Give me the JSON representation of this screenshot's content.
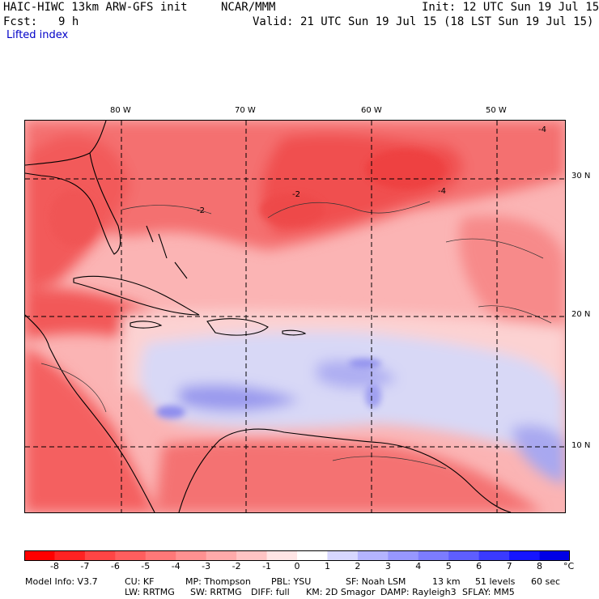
{
  "header": {
    "model": "HAIC-HIWC 13km ARW-GFS init",
    "org": "NCAR/MMM",
    "init": "Init: 12 UTC Sun 19 Jul 15",
    "fcst_label": "Fcst:",
    "fcst_value": "9 h",
    "valid": "Valid: 21 UTC Sun 19 Jul 15 (18 LST Sun 19 Jul 15)",
    "field": "Lifted index"
  },
  "map": {
    "lon_labels": [
      "80 W",
      "70 W",
      "60 W",
      "50 W"
    ],
    "lat_labels": [
      "30 N",
      "20 N",
      "10 N"
    ],
    "contour_labels": [
      "-2",
      "-2",
      "-4",
      "-4"
    ],
    "colors": {
      "land_outline": "#000000",
      "gridline": "#000000",
      "strong_unstable": "#f24a4a",
      "moderate_unstable": "#f78080",
      "weak_unstable": "#fbb4b4",
      "neutral": "#fde5e5",
      "weak_stable": "#c8c8f5",
      "stable": "#8a8aee"
    }
  },
  "colorbar": {
    "unit": "°C",
    "ticks": [
      "-8",
      "-7",
      "-6",
      "-5",
      "-4",
      "-3",
      "-2",
      "-1",
      "0",
      "1",
      "2",
      "3",
      "4",
      "5",
      "6",
      "7",
      "8"
    ],
    "colors": [
      "#ff0000",
      "#ff2222",
      "#ff4545",
      "#ff5e5e",
      "#ff7878",
      "#ff9191",
      "#ffaaaa",
      "#ffc4c4",
      "#ffe5e5",
      "#ffffff",
      "#d7d7ff",
      "#b4b4ff",
      "#9797ff",
      "#7c7cff",
      "#5e5eff",
      "#3a3aff",
      "#1515ff",
      "#0000e6"
    ]
  },
  "footer": {
    "line1": [
      "Model Info: V3.7",
      "CU: KF",
      "MP: Thompson",
      "PBL: YSU",
      "SF: Noah LSM",
      "13 km",
      "51 levels",
      "60 sec"
    ],
    "line2": [
      "LW: RRTMG",
      "SW: RRTMG",
      "DIFF: full",
      "KM: 2D Smagor",
      "DAMP: Rayleigh3",
      "SFLAY: MM5"
    ]
  }
}
